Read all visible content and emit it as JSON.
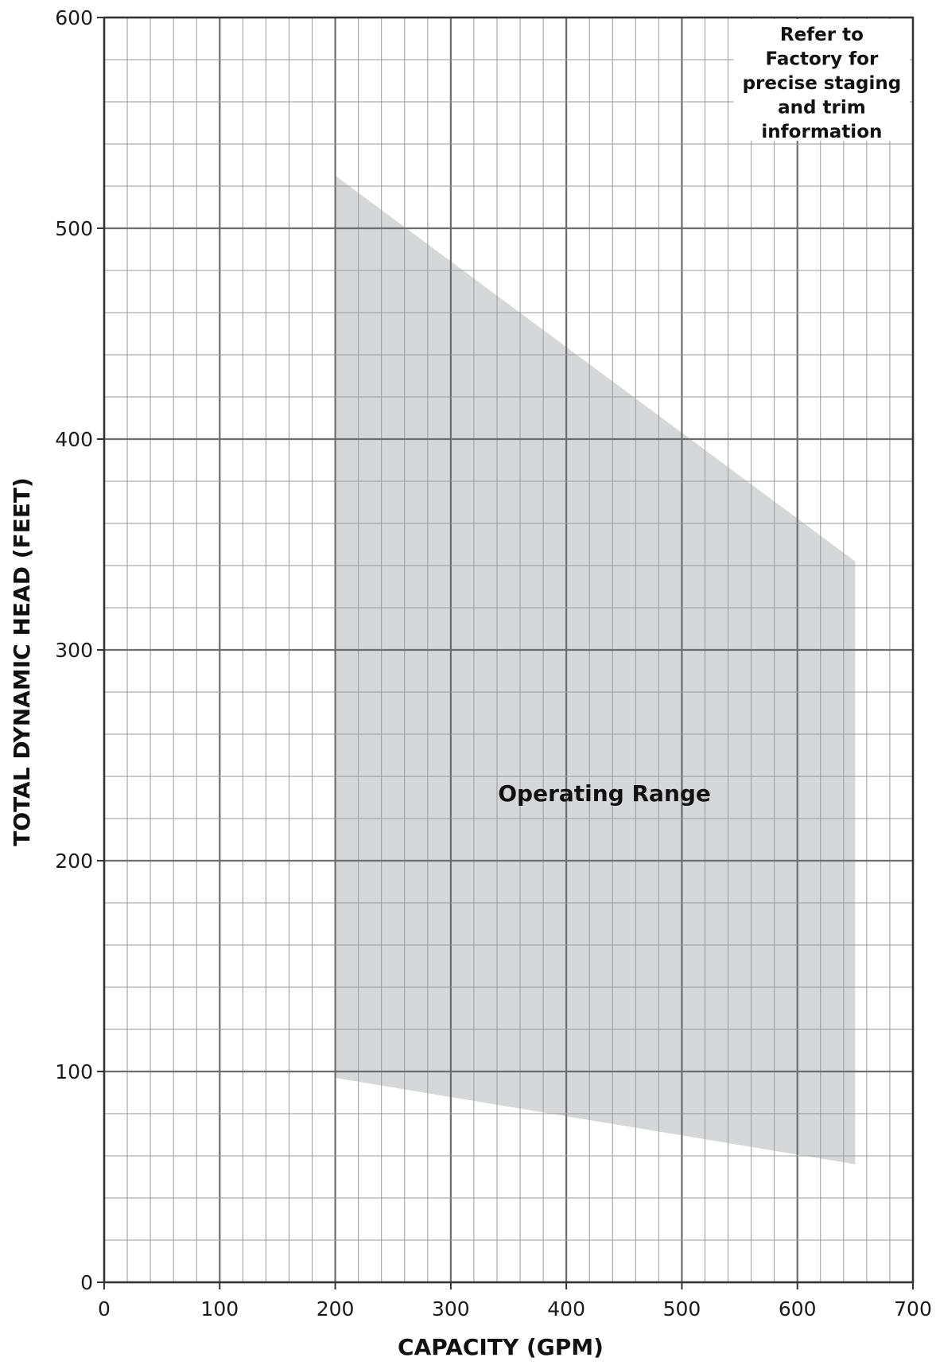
{
  "chart_data": {
    "type": "area",
    "xlabel": "CAPACITY (GPM)",
    "ylabel": "TOTAL DYNAMIC HEAD (FEET)",
    "xlim": [
      0,
      700
    ],
    "ylim": [
      0,
      600
    ],
    "x_ticks": [
      0,
      100,
      200,
      300,
      400,
      500,
      600,
      700
    ],
    "y_ticks": [
      0,
      100,
      200,
      300,
      400,
      500,
      600
    ],
    "x_tick_labels": [
      "0",
      "100",
      "200",
      "300",
      "400",
      "500",
      "600",
      "700"
    ],
    "y_tick_labels": [
      "0",
      "100",
      "200",
      "300",
      "400",
      "500",
      "600"
    ],
    "x_minor_step": 20,
    "y_minor_step": 20,
    "grid": true,
    "legend": "none",
    "region": {
      "name": "Operating Range",
      "color": "#d6d7d9",
      "upper": {
        "x": [
          200,
          650
        ],
        "y": [
          525,
          342
        ]
      },
      "lower": {
        "x": [
          200,
          650
        ],
        "y": [
          97,
          56
        ]
      }
    },
    "annotation": {
      "lines": [
        "Refer to",
        "Factory for",
        "precise staging",
        "and trim",
        "information"
      ],
      "position": "top-right"
    },
    "colors": {
      "major_grid": "#6d6d6d",
      "minor_grid": "#9a9a9a",
      "axis": "#333333"
    }
  }
}
